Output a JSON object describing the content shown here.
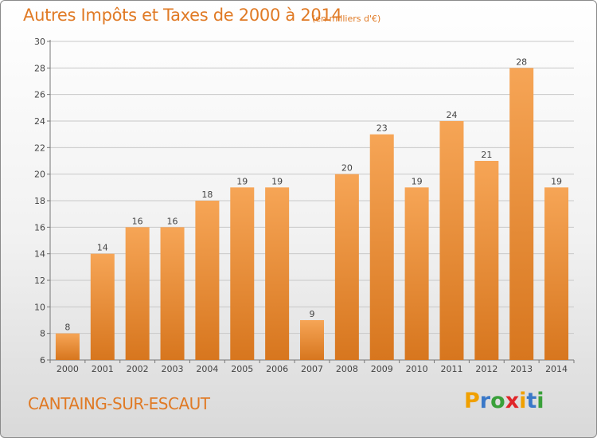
{
  "header": {
    "title": "Autres Impôts et Taxes de 2000 à 2014",
    "unit": "(en milliers d'€)"
  },
  "footer": {
    "commune": "CANTAING-SUR-ESCAUT",
    "brand": "Proxiti"
  },
  "colors": {
    "accent": "#e07a25",
    "bar_top": "#f6a556",
    "bar_bottom": "#d7761e",
    "grid": "#c8c8c8",
    "brand_letters": [
      "#f0a000",
      "#3a78c8",
      "#3aa03a",
      "#e0262a",
      "#f0a000",
      "#3a78c8",
      "#3aa03a"
    ]
  },
  "chart_data": {
    "type": "bar",
    "title": "Autres Impôts et Taxes de 2000 à 2014",
    "subtitle": "(en milliers d'€)",
    "xlabel": "",
    "ylabel": "",
    "categories": [
      "2000",
      "2001",
      "2002",
      "2003",
      "2004",
      "2005",
      "2006",
      "2007",
      "2008",
      "2009",
      "2010",
      "2011",
      "2012",
      "2013",
      "2014"
    ],
    "values": [
      8,
      14,
      16,
      16,
      18,
      19,
      19,
      9,
      20,
      23,
      19,
      24,
      21,
      28,
      19
    ],
    "ylim": [
      6,
      30
    ],
    "yticks": [
      6,
      8,
      10,
      12,
      14,
      16,
      18,
      20,
      22,
      24,
      26,
      28,
      30
    ],
    "grid": true,
    "data_labels": true
  }
}
